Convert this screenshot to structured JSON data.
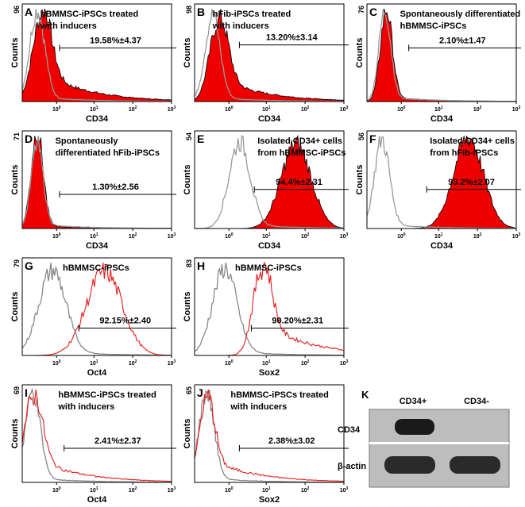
{
  "y_label": "Counts",
  "x_tick_base": "10",
  "x_tick_exponents": [
    "0",
    "1",
    "2",
    "3"
  ],
  "panels": [
    {
      "letter": "A",
      "title": [
        "hBMMSC-iPSCs treated",
        "with inducers"
      ],
      "y_max": "96",
      "percent": "19.58%±4.37",
      "x_label": "CD34"
    },
    {
      "letter": "B",
      "title": [
        "hFib-iPSCs treated",
        "with inducers"
      ],
      "y_max": "98",
      "percent": "13.20%±3.14",
      "x_label": "CD34"
    },
    {
      "letter": "C",
      "title": [
        "Spontaneously differentiated",
        "hBMMSC-iPSCs"
      ],
      "y_max": "76",
      "percent": "2.10%±1.47",
      "x_label": "CD34"
    },
    {
      "letter": "D",
      "title": [
        "Spontaneously",
        "differentiated hFib-iPSCs"
      ],
      "y_max": "71",
      "percent": "1.30%±2.56",
      "x_label": "CD34"
    },
    {
      "letter": "E",
      "title": [
        "Isolated CD34+ cells",
        "from hBMMSC-iPSCs"
      ],
      "y_max": "54",
      "percent": "94.4%±2.31",
      "x_label": "CD34"
    },
    {
      "letter": "F",
      "title": [
        "Isolated CD34+ cells",
        "from hFib-iPSCs"
      ],
      "y_max": "56",
      "percent": "93.2%±2.07",
      "x_label": "CD34"
    },
    {
      "letter": "G",
      "title": [
        "hBMMSC-iPSCs"
      ],
      "y_max": "79",
      "percent": "92.15%±2.40",
      "x_label": "Oct4"
    },
    {
      "letter": "H",
      "title": [
        "hBMMSC-iPSCs"
      ],
      "y_max": "83",
      "percent": "90.20%±2.31",
      "x_label": "Sox2"
    },
    {
      "letter": "I",
      "title": [
        "hBMMSC-iPSCs treated",
        "with inducers"
      ],
      "y_max": "69",
      "percent": "2.41%±2.37",
      "x_label": "Oct4"
    },
    {
      "letter": "J",
      "title": [
        "hBMMSC-iPSCs treated",
        "with inducers"
      ],
      "y_max": "65",
      "percent": "2.38%±3.02",
      "x_label": "Sox2"
    }
  ],
  "blot": {
    "letter": "K",
    "columns": [
      "CD34+",
      "CD34-"
    ],
    "rows": [
      "CD34",
      "β-actin"
    ]
  }
}
